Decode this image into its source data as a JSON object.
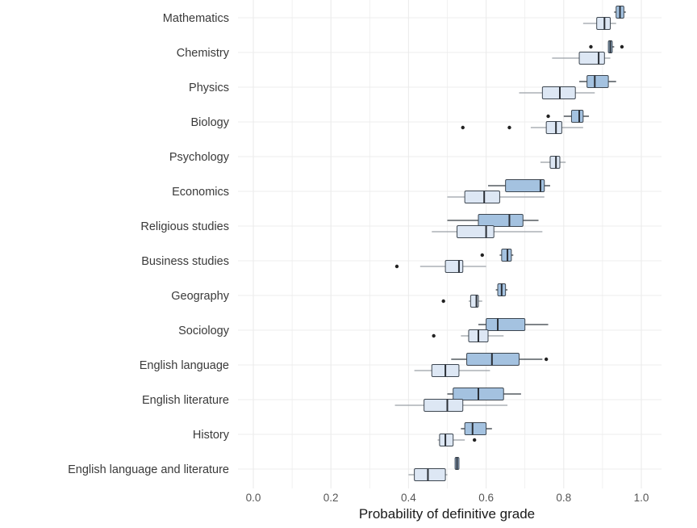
{
  "colors": {
    "dark_box": "#a4c2e0",
    "light_box": "#dde7f4",
    "box_stroke": "#3d4650",
    "median": "#2a2f36",
    "whisker_dark": "#333a42",
    "whisker_light": "#9aa0a6",
    "outlier": "#222222",
    "grid": "#ececec"
  },
  "chart_data": {
    "type": "boxplot",
    "title": "",
    "xlabel": "Probability of definitive grade",
    "ylabel": "",
    "xlim": [
      0,
      1.05
    ],
    "xticks": [
      0.0,
      0.2,
      0.4,
      0.6,
      0.8,
      1.0
    ],
    "xtick_labels": [
      "0.0",
      "0.2",
      "0.4",
      "0.6",
      "0.8",
      "1.0"
    ],
    "grid": true,
    "legend": "none",
    "series": [
      {
        "style": "dark"
      },
      {
        "style": "light"
      }
    ],
    "categories": [
      {
        "label": "Mathematics",
        "boxes": [
          {
            "series": 0,
            "whislo": 0.93,
            "q1": 0.935,
            "med": 0.945,
            "q3": 0.955,
            "whishi": 0.96,
            "fliers": []
          },
          {
            "series": 1,
            "whislo": 0.85,
            "q1": 0.885,
            "med": 0.905,
            "q3": 0.92,
            "whishi": 0.935,
            "fliers": []
          }
        ]
      },
      {
        "label": "Chemistry",
        "boxes": [
          {
            "series": 0,
            "whislo": 0.915,
            "q1": 0.915,
            "med": 0.92,
            "q3": 0.925,
            "whishi": 0.93,
            "fliers": [
              0.87,
              0.95
            ]
          },
          {
            "series": 1,
            "whislo": 0.77,
            "q1": 0.84,
            "med": 0.89,
            "q3": 0.905,
            "whishi": 0.92,
            "fliers": []
          }
        ]
      },
      {
        "label": "Physics",
        "boxes": [
          {
            "series": 0,
            "whislo": 0.84,
            "q1": 0.86,
            "med": 0.88,
            "q3": 0.915,
            "whishi": 0.935,
            "fliers": []
          },
          {
            "series": 1,
            "whislo": 0.685,
            "q1": 0.745,
            "med": 0.79,
            "q3": 0.83,
            "whishi": 0.88,
            "fliers": []
          }
        ]
      },
      {
        "label": "Biology",
        "boxes": [
          {
            "series": 0,
            "whislo": 0.8,
            "q1": 0.82,
            "med": 0.84,
            "q3": 0.85,
            "whishi": 0.865,
            "fliers": [
              0.76
            ]
          },
          {
            "series": 1,
            "whislo": 0.715,
            "q1": 0.755,
            "med": 0.78,
            "q3": 0.795,
            "whishi": 0.85,
            "fliers": [
              0.54,
              0.66
            ]
          }
        ]
      },
      {
        "label": "Psychology",
        "boxes": [
          {
            "series": 1,
            "whislo": 0.74,
            "q1": 0.765,
            "med": 0.78,
            "q3": 0.79,
            "whishi": 0.805,
            "fliers": []
          }
        ]
      },
      {
        "label": "Economics",
        "boxes": [
          {
            "series": 0,
            "whislo": 0.605,
            "q1": 0.65,
            "med": 0.74,
            "q3": 0.75,
            "whishi": 0.765,
            "fliers": []
          },
          {
            "series": 1,
            "whislo": 0.5,
            "q1": 0.545,
            "med": 0.595,
            "q3": 0.635,
            "whishi": 0.75,
            "fliers": []
          }
        ]
      },
      {
        "label": "Religious studies",
        "boxes": [
          {
            "series": 0,
            "whislo": 0.5,
            "q1": 0.58,
            "med": 0.66,
            "q3": 0.695,
            "whishi": 0.735,
            "fliers": []
          },
          {
            "series": 1,
            "whislo": 0.46,
            "q1": 0.525,
            "med": 0.6,
            "q3": 0.62,
            "whishi": 0.745,
            "fliers": []
          }
        ]
      },
      {
        "label": "Business studies",
        "boxes": [
          {
            "series": 0,
            "whislo": 0.635,
            "q1": 0.64,
            "med": 0.655,
            "q3": 0.665,
            "whishi": 0.67,
            "fliers": [
              0.59
            ]
          },
          {
            "series": 1,
            "whislo": 0.43,
            "q1": 0.495,
            "med": 0.53,
            "q3": 0.54,
            "whishi": 0.6,
            "fliers": [
              0.37
            ]
          }
        ]
      },
      {
        "label": "Geography",
        "boxes": [
          {
            "series": 0,
            "whislo": 0.625,
            "q1": 0.63,
            "med": 0.64,
            "q3": 0.65,
            "whishi": 0.655,
            "fliers": []
          },
          {
            "series": 1,
            "whislo": 0.555,
            "q1": 0.56,
            "med": 0.575,
            "q3": 0.58,
            "whishi": 0.59,
            "fliers": [
              0.49
            ]
          }
        ]
      },
      {
        "label": "Sociology",
        "boxes": [
          {
            "series": 0,
            "whislo": 0.58,
            "q1": 0.6,
            "med": 0.63,
            "q3": 0.7,
            "whishi": 0.76,
            "fliers": []
          },
          {
            "series": 1,
            "whislo": 0.535,
            "q1": 0.555,
            "med": 0.58,
            "q3": 0.605,
            "whishi": 0.645,
            "fliers": [
              0.465
            ]
          }
        ]
      },
      {
        "label": "English language",
        "boxes": [
          {
            "series": 0,
            "whislo": 0.51,
            "q1": 0.55,
            "med": 0.615,
            "q3": 0.685,
            "whishi": 0.745,
            "fliers": [
              0.755
            ]
          },
          {
            "series": 1,
            "whislo": 0.415,
            "q1": 0.46,
            "med": 0.495,
            "q3": 0.53,
            "whishi": 0.61,
            "fliers": []
          }
        ]
      },
      {
        "label": "English literature",
        "boxes": [
          {
            "series": 0,
            "whislo": 0.5,
            "q1": 0.515,
            "med": 0.58,
            "q3": 0.645,
            "whishi": 0.69,
            "fliers": []
          },
          {
            "series": 1,
            "whislo": 0.365,
            "q1": 0.44,
            "med": 0.5,
            "q3": 0.54,
            "whishi": 0.655,
            "fliers": []
          }
        ]
      },
      {
        "label": "History",
        "boxes": [
          {
            "series": 0,
            "whislo": 0.535,
            "q1": 0.545,
            "med": 0.565,
            "q3": 0.6,
            "whishi": 0.615,
            "fliers": []
          },
          {
            "series": 1,
            "whislo": 0.475,
            "q1": 0.48,
            "med": 0.495,
            "q3": 0.515,
            "whishi": 0.545,
            "fliers": [
              0.57
            ]
          }
        ]
      },
      {
        "label": "English language and literature",
        "boxes": [
          {
            "series": 0,
            "whislo": 0.52,
            "q1": 0.52,
            "med": 0.525,
            "q3": 0.53,
            "whishi": 0.53,
            "fliers": []
          },
          {
            "series": 1,
            "whislo": 0.4,
            "q1": 0.415,
            "med": 0.45,
            "q3": 0.495,
            "whishi": 0.5,
            "fliers": []
          }
        ]
      }
    ]
  }
}
